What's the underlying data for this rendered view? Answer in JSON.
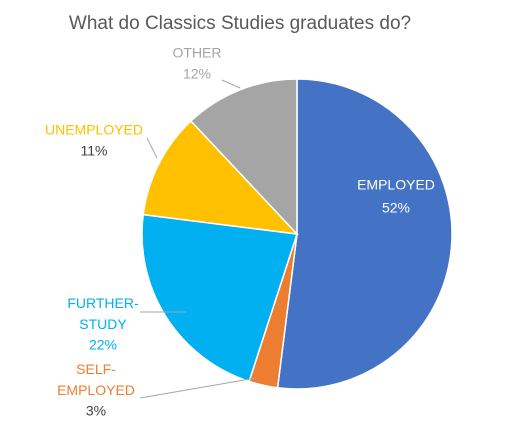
{
  "chart_data": {
    "type": "pie",
    "title": "What do Classics Studies graduates do?",
    "categories": [
      "EMPLOYED",
      "SELF-EMPLOYED",
      "FURTHER-STUDY",
      "UNEMPLOYED",
      "OTHER"
    ],
    "values": [
      52,
      3,
      22,
      11,
      12
    ],
    "value_labels": [
      "52%",
      "3%",
      "22%",
      "11%",
      "12%"
    ],
    "colors": [
      "#4472c4",
      "#ed7d31",
      "#00b0f0",
      "#ffc000",
      "#a5a5a5"
    ]
  }
}
